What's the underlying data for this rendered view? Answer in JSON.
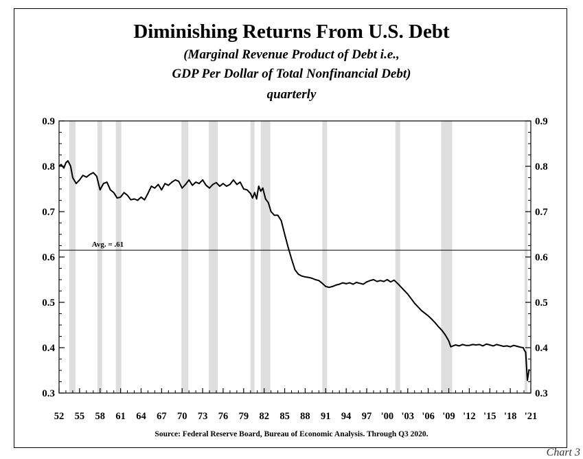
{
  "header": {
    "title": "Diminishing Returns From U.S. Debt",
    "subtitle_line1": "(Marginal Revenue Product of Debt i.e.,",
    "subtitle_line2": "GDP Per Dollar of Total Nonfinancial Debt)",
    "frequency": "quarterly"
  },
  "footer": {
    "source": "Source:  Federal Reserve Board, Bureau of Economic Analysis.  Through Q3 2020.",
    "page_tag": "Chart 3"
  },
  "chart_data": {
    "type": "line",
    "title": "Diminishing Returns From U.S. Debt",
    "xlabel": "",
    "ylabel": "",
    "xlim": [
      1952.0,
      2021.0
    ],
    "ylim": [
      0.3,
      0.9
    ],
    "y_ticks": [
      0.3,
      0.4,
      0.5,
      0.6,
      0.7,
      0.8,
      0.9
    ],
    "y_tick_labels": [
      "0.3",
      "0.4",
      "0.5",
      "0.6",
      "0.7",
      "0.8",
      "0.9"
    ],
    "x_ticks": [
      1952,
      1955,
      1958,
      1961,
      1964,
      1967,
      1970,
      1973,
      1976,
      1979,
      1982,
      1985,
      1988,
      1991,
      1994,
      1997,
      2000,
      2003,
      2006,
      2009,
      2012,
      2015,
      2018,
      2021
    ],
    "x_tick_labels": [
      "52",
      "55",
      "58",
      "61",
      "64",
      "67",
      "70",
      "73",
      "76",
      "79",
      "82",
      "85",
      "88",
      "91",
      "94",
      "97",
      "'00",
      "'03",
      "'06",
      "'09",
      "'12",
      "'15",
      "'18",
      "'21"
    ],
    "recessions": [
      [
        1953.5,
        1954.4
      ],
      [
        1957.6,
        1958.3
      ],
      [
        1960.3,
        1961.1
      ],
      [
        1969.9,
        1970.9
      ],
      [
        1973.9,
        1975.2
      ],
      [
        1980.0,
        1980.6
      ],
      [
        1981.5,
        1982.9
      ],
      [
        1990.5,
        1991.2
      ],
      [
        2001.2,
        2001.9
      ],
      [
        2007.9,
        2009.5
      ],
      [
        2020.1,
        2020.5
      ]
    ],
    "average": {
      "value": 0.615,
      "label": "Avg. = .61"
    },
    "series": [
      {
        "name": "GDP per dollar of total nonfinancial debt",
        "x": [
          1952.0,
          1952.3,
          1952.7,
          1953.0,
          1953.3,
          1953.7,
          1954.0,
          1954.5,
          1955.0,
          1955.5,
          1956.0,
          1956.5,
          1957.0,
          1957.5,
          1958.0,
          1958.5,
          1959.0,
          1959.5,
          1960.0,
          1960.5,
          1961.0,
          1961.5,
          1962.0,
          1962.5,
          1963.0,
          1963.5,
          1964.0,
          1964.5,
          1965.0,
          1965.5,
          1966.0,
          1966.5,
          1967.0,
          1967.5,
          1968.0,
          1968.5,
          1969.0,
          1969.5,
          1970.0,
          1970.5,
          1971.0,
          1971.5,
          1972.0,
          1972.5,
          1973.0,
          1973.5,
          1974.0,
          1974.5,
          1975.0,
          1975.5,
          1976.0,
          1976.5,
          1977.0,
          1977.5,
          1978.0,
          1978.5,
          1979.0,
          1979.5,
          1980.0,
          1980.3,
          1980.6,
          1980.9,
          1981.2,
          1981.5,
          1981.8,
          1982.2,
          1982.6,
          1983.0,
          1983.5,
          1984.0,
          1984.5,
          1985.0,
          1985.5,
          1986.0,
          1986.5,
          1987.0,
          1987.5,
          1988.0,
          1988.5,
          1989.0,
          1989.5,
          1990.0,
          1990.5,
          1991.0,
          1991.5,
          1992.0,
          1992.5,
          1993.0,
          1993.5,
          1994.0,
          1994.5,
          1995.0,
          1995.5,
          1996.0,
          1996.5,
          1997.0,
          1997.5,
          1998.0,
          1998.5,
          1999.0,
          1999.5,
          2000.0,
          2000.5,
          2001.0,
          2001.5,
          2002.0,
          2002.5,
          2003.0,
          2003.5,
          2004.0,
          2004.5,
          2005.0,
          2005.5,
          2006.0,
          2006.5,
          2007.0,
          2007.5,
          2008.0,
          2008.5,
          2009.0,
          2009.3,
          2009.6,
          2010.0,
          2010.5,
          2011.0,
          2011.5,
          2012.0,
          2012.5,
          2013.0,
          2013.5,
          2014.0,
          2014.5,
          2015.0,
          2015.5,
          2016.0,
          2016.5,
          2017.0,
          2017.5,
          2018.0,
          2018.5,
          2019.0,
          2019.5,
          2019.9,
          2020.0,
          2020.25,
          2020.5,
          2020.75
        ],
        "values": [
          0.8,
          0.804,
          0.796,
          0.808,
          0.812,
          0.8,
          0.775,
          0.762,
          0.77,
          0.78,
          0.776,
          0.782,
          0.786,
          0.778,
          0.748,
          0.762,
          0.765,
          0.748,
          0.742,
          0.73,
          0.732,
          0.742,
          0.736,
          0.726,
          0.728,
          0.725,
          0.732,
          0.726,
          0.74,
          0.756,
          0.752,
          0.76,
          0.748,
          0.762,
          0.758,
          0.765,
          0.77,
          0.767,
          0.752,
          0.76,
          0.77,
          0.758,
          0.765,
          0.762,
          0.77,
          0.758,
          0.752,
          0.76,
          0.764,
          0.756,
          0.762,
          0.756,
          0.76,
          0.77,
          0.76,
          0.765,
          0.75,
          0.748,
          0.74,
          0.73,
          0.742,
          0.728,
          0.756,
          0.745,
          0.752,
          0.728,
          0.72,
          0.7,
          0.692,
          0.692,
          0.68,
          0.65,
          0.622,
          0.596,
          0.572,
          0.562,
          0.558,
          0.556,
          0.555,
          0.553,
          0.55,
          0.548,
          0.542,
          0.535,
          0.533,
          0.535,
          0.538,
          0.54,
          0.543,
          0.541,
          0.543,
          0.54,
          0.544,
          0.542,
          0.54,
          0.545,
          0.548,
          0.55,
          0.546,
          0.548,
          0.546,
          0.55,
          0.545,
          0.549,
          0.542,
          0.534,
          0.526,
          0.518,
          0.508,
          0.498,
          0.49,
          0.482,
          0.476,
          0.47,
          0.463,
          0.455,
          0.446,
          0.438,
          0.428,
          0.415,
          0.402,
          0.404,
          0.406,
          0.404,
          0.407,
          0.405,
          0.405,
          0.407,
          0.406,
          0.407,
          0.404,
          0.408,
          0.406,
          0.404,
          0.407,
          0.405,
          0.403,
          0.404,
          0.402,
          0.405,
          0.403,
          0.401,
          0.4,
          0.396,
          0.39,
          0.328,
          0.352
        ]
      }
    ]
  }
}
